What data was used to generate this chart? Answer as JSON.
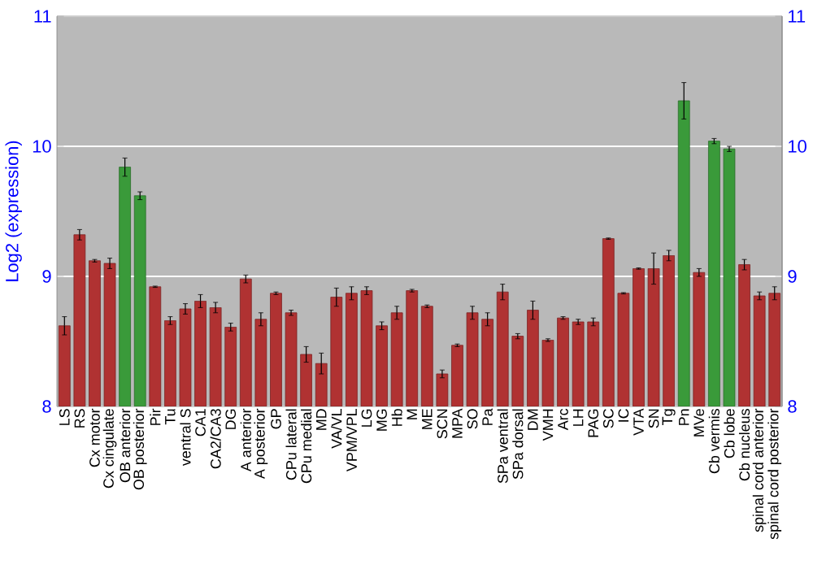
{
  "chart_data": {
    "type": "bar",
    "ylabel": "Log2 (expression)",
    "categories": [
      "LS",
      "RS",
      "Cx motor",
      "Cx cingulate",
      "OB anterior",
      "OB posterior",
      "Pir",
      "Tu",
      "ventral S",
      "CA1",
      "CA2/CA3",
      "DG",
      "A anterior",
      "A posterior",
      "GP",
      "CPu lateral",
      "CPu medial",
      "MD",
      "VA/VL",
      "VPM/VPL",
      "LG",
      "MG",
      "Hb",
      "M",
      "ME",
      "SCN",
      "MPA",
      "SO",
      "Pa",
      "SPa ventral",
      "SPa dorsal",
      "DM",
      "VMH",
      "Arc",
      "LH",
      "PAG",
      "SC",
      "IC",
      "VTA",
      "SN",
      "Tg",
      "Pn",
      "MVe",
      "Cb vermis",
      "Cb lobe",
      "Cb nucleus",
      "spinal cord anterior",
      "spinal cord posterior"
    ],
    "values": [
      8.62,
      9.32,
      9.12,
      9.1,
      9.84,
      9.62,
      8.92,
      8.66,
      8.75,
      8.81,
      8.76,
      8.61,
      8.98,
      8.67,
      8.87,
      8.72,
      8.4,
      8.33,
      8.84,
      8.87,
      8.89,
      8.62,
      8.72,
      8.89,
      8.77,
      8.25,
      8.47,
      8.72,
      8.67,
      8.88,
      8.54,
      8.74,
      8.51,
      8.68,
      8.65,
      8.65,
      9.29,
      8.87,
      9.06,
      9.06,
      9.16,
      10.35,
      9.03,
      10.04,
      9.98,
      9.09,
      8.85,
      8.87
    ],
    "errors": [
      0.07,
      0.04,
      0.01,
      0.04,
      0.07,
      0.03,
      0.005,
      0.03,
      0.04,
      0.05,
      0.04,
      0.03,
      0.03,
      0.05,
      0.01,
      0.02,
      0.06,
      0.08,
      0.07,
      0.05,
      0.03,
      0.03,
      0.05,
      0.01,
      0.01,
      0.03,
      0.01,
      0.05,
      0.05,
      0.06,
      0.02,
      0.07,
      0.01,
      0.01,
      0.02,
      0.03,
      0.005,
      0.005,
      0.005,
      0.12,
      0.04,
      0.14,
      0.03,
      0.02,
      0.02,
      0.04,
      0.03,
      0.05
    ],
    "colors": [
      "#b03232",
      "#b03232",
      "#b03232",
      "#b03232",
      "#3a9a3a",
      "#3a9a3a",
      "#b03232",
      "#b03232",
      "#b03232",
      "#b03232",
      "#b03232",
      "#b03232",
      "#b03232",
      "#b03232",
      "#b03232",
      "#b03232",
      "#b03232",
      "#b03232",
      "#b03232",
      "#b03232",
      "#b03232",
      "#b03232",
      "#b03232",
      "#b03232",
      "#b03232",
      "#b03232",
      "#b03232",
      "#b03232",
      "#b03232",
      "#b03232",
      "#b03232",
      "#b03232",
      "#b03232",
      "#b03232",
      "#b03232",
      "#b03232",
      "#b03232",
      "#b03232",
      "#b03232",
      "#b03232",
      "#b03232",
      "#3a9a3a",
      "#b03232",
      "#3a9a3a",
      "#3a9a3a",
      "#b03232",
      "#b03232",
      "#b03232"
    ],
    "ylim": [
      8,
      11
    ],
    "yticks": [
      8,
      9,
      10,
      11
    ],
    "y2lim": [
      8,
      11
    ],
    "y2ticks": [
      8,
      9,
      10,
      11
    ],
    "grid": "y"
  }
}
